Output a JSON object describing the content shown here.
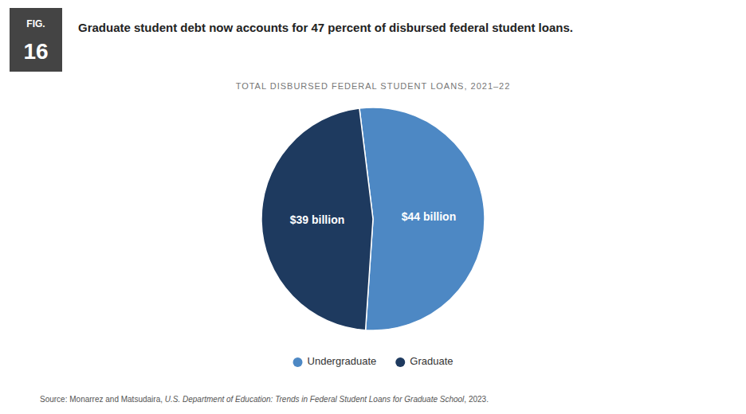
{
  "chart_data": {
    "type": "pie",
    "title": "Graduate student debt now accounts for 47 percent of disbursed federal student loans.",
    "subtitle": "TOTAL DISBURSED FEDERAL STUDENT LOANS, 2021–22",
    "annotations": [
      "FIG.",
      "16"
    ],
    "categories": [
      "Undergraduate",
      "Graduate"
    ],
    "values": [
      44,
      39
    ],
    "value_labels": [
      "$44 billion",
      "$39 billion"
    ],
    "colors": [
      "#4d88c4",
      "#1e3a5f"
    ],
    "data_labels": true,
    "legend": "bottom",
    "source": [
      "Source: Monarrez and Matsudaira, ",
      "U.S. Department of Education: Trends in Federal Student Loans for Graduate School",
      ", 2023."
    ]
  }
}
